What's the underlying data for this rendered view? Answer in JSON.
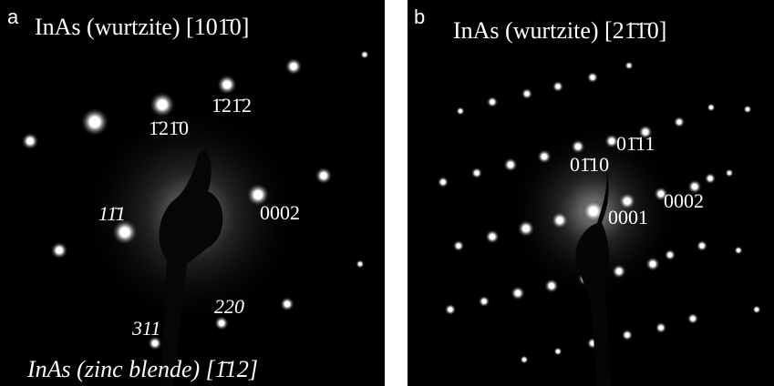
{
  "panels": [
    {
      "letter": "a",
      "title": "InAs (wurtzite) [101̄0]",
      "labels": [
        "1̄21̄2",
        "1̄21̄0",
        "0002",
        "11̄1",
        "220",
        "311"
      ],
      "footer": "InAs (zinc blende) [1̄12]"
    },
    {
      "letter": "b",
      "title": "InAs (wurtzite) [21̄1̄0]",
      "labels": [
        "01̄11",
        "01̄10",
        "0002",
        "0001"
      ]
    }
  ]
}
